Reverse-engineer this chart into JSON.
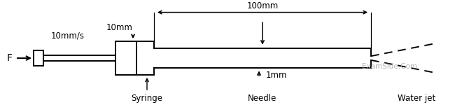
{
  "bg_color": "#ffffff",
  "line_color": "#000000",
  "label_color_watermark": "#aaaaaa",
  "labels": {
    "speed": "10mm/s",
    "diameter": "10mm",
    "length": "100mm",
    "gap": "1mm",
    "force": "F",
    "syringe": "Syringe",
    "needle": "Needle",
    "waterjet": "Water jet",
    "watermark": "ExamSide.Com"
  },
  "figsize": [
    6.6,
    1.6
  ],
  "dpi": 100
}
